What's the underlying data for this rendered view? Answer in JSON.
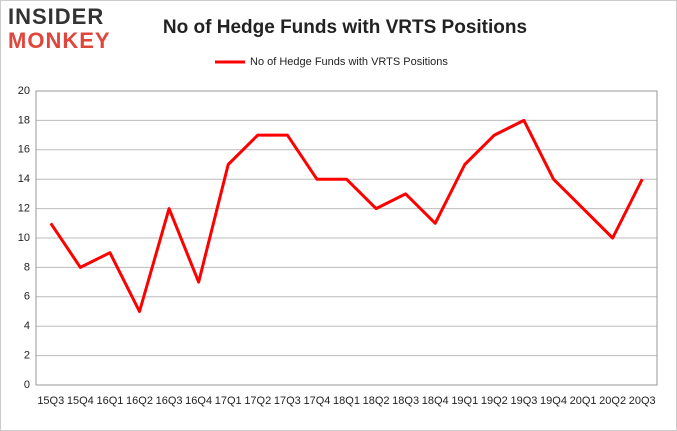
{
  "logo": {
    "top": "INSIDER",
    "bottom": "MONKEY"
  },
  "chart_data": {
    "type": "line",
    "title": "No of Hedge Funds with VRTS Positions",
    "categories": [
      "15Q3",
      "15Q4",
      "16Q1",
      "16Q2",
      "16Q3",
      "16Q4",
      "17Q1",
      "17Q2",
      "17Q3",
      "17Q4",
      "18Q1",
      "18Q2",
      "18Q3",
      "18Q4",
      "19Q1",
      "19Q2",
      "19Q3",
      "19Q4",
      "20Q1",
      "20Q2",
      "20Q3"
    ],
    "series": [
      {
        "name": "No of Hedge Funds with VRTS Positions",
        "color": "#ff0000",
        "values": [
          11,
          8,
          9,
          5,
          12,
          7,
          15,
          17,
          17,
          14,
          14,
          12,
          13,
          11,
          15,
          17,
          18,
          14,
          12,
          10,
          14
        ]
      }
    ],
    "ylim": [
      0,
      20
    ],
    "yticks": [
      0,
      2,
      4,
      6,
      8,
      10,
      12,
      14,
      16,
      18,
      20
    ],
    "grid": true,
    "legend": "top"
  }
}
